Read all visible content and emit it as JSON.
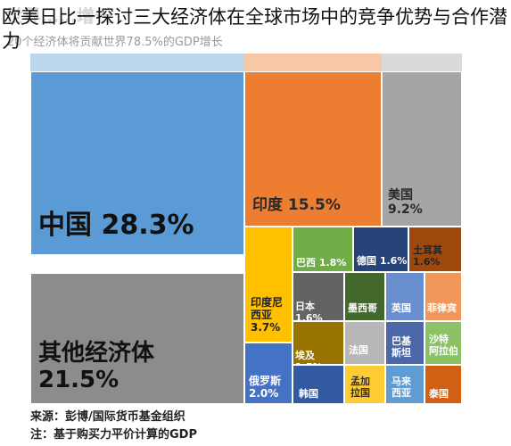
{
  "page_title": "欧美日比一探讨三大经济体在全球市场中的竞争优势与合作潜力",
  "chart_heading": "世界……增长",
  "chart_data": {
    "type": "treemap",
    "subtitle": "20个经济体将贡献世界78.5%的GDP增长",
    "items": [
      {
        "name": "中国",
        "value": 28.3,
        "label": "中国   28.3%",
        "color": "#5b9bd5"
      },
      {
        "name": "其他经济体",
        "value": 21.5,
        "label": "其他经济体\n21.5%",
        "color": "#8c8c8c"
      },
      {
        "name": "印度",
        "value": 15.5,
        "label": "印度   15.5%",
        "color": "#ed7d31"
      },
      {
        "name": "美国",
        "value": 9.2,
        "label": "美国\n9.2%",
        "color": "#a5a5a5"
      },
      {
        "name": "印度尼西亚",
        "value": 3.7,
        "label": "印度尼\n西亚\n3.7%",
        "color": "#ffc000"
      },
      {
        "name": "俄罗斯",
        "value": 2.0,
        "label": "俄罗斯\n2.0%",
        "color": "#4472c4"
      },
      {
        "name": "巴西",
        "value": 1.8,
        "label": "巴西  1.8%",
        "color": "#70ad47"
      },
      {
        "name": "德国",
        "value": 1.6,
        "label": "德国 1.6%",
        "color": "#264478"
      },
      {
        "name": "土耳其",
        "value": 1.6,
        "label": "土耳其\n1.6%",
        "color": "#9e480e"
      },
      {
        "name": "日本",
        "value": 1.6,
        "label": "日本 1.6%",
        "color": "#636363"
      },
      {
        "name": "埃及",
        "value": 1.5,
        "label": "埃及 1.5%",
        "color": "#997300"
      },
      {
        "name": "墨西哥",
        "label": "墨西哥",
        "color": "#43682b"
      },
      {
        "name": "英国",
        "label": "英国",
        "color": "#698ed0"
      },
      {
        "name": "菲律宾",
        "label": "菲律宾",
        "color": "#f1975a"
      },
      {
        "name": "法国",
        "label": "法国",
        "color": "#b7b7b7"
      },
      {
        "name": "巴基斯坦",
        "label": "巴基\n斯坦",
        "color": "#4b67a8"
      },
      {
        "name": "沙特阿拉伯",
        "label": "沙特\n阿拉伯",
        "color": "#8cc168"
      },
      {
        "name": "韩国",
        "label": "韩国",
        "color": "#335aa1"
      },
      {
        "name": "孟加拉国",
        "label": "孟加\n拉国",
        "color": "#ffcd33"
      },
      {
        "name": "马来西亚",
        "label": "马来\n西亚",
        "color": "#5e9cd3"
      },
      {
        "name": "泰国",
        "label": "泰国",
        "color": "#d26012"
      }
    ]
  },
  "notes": {
    "source": "来源：彭博/国际货币基金组织",
    "note": "注：基于购买力平价计算的GDP"
  }
}
